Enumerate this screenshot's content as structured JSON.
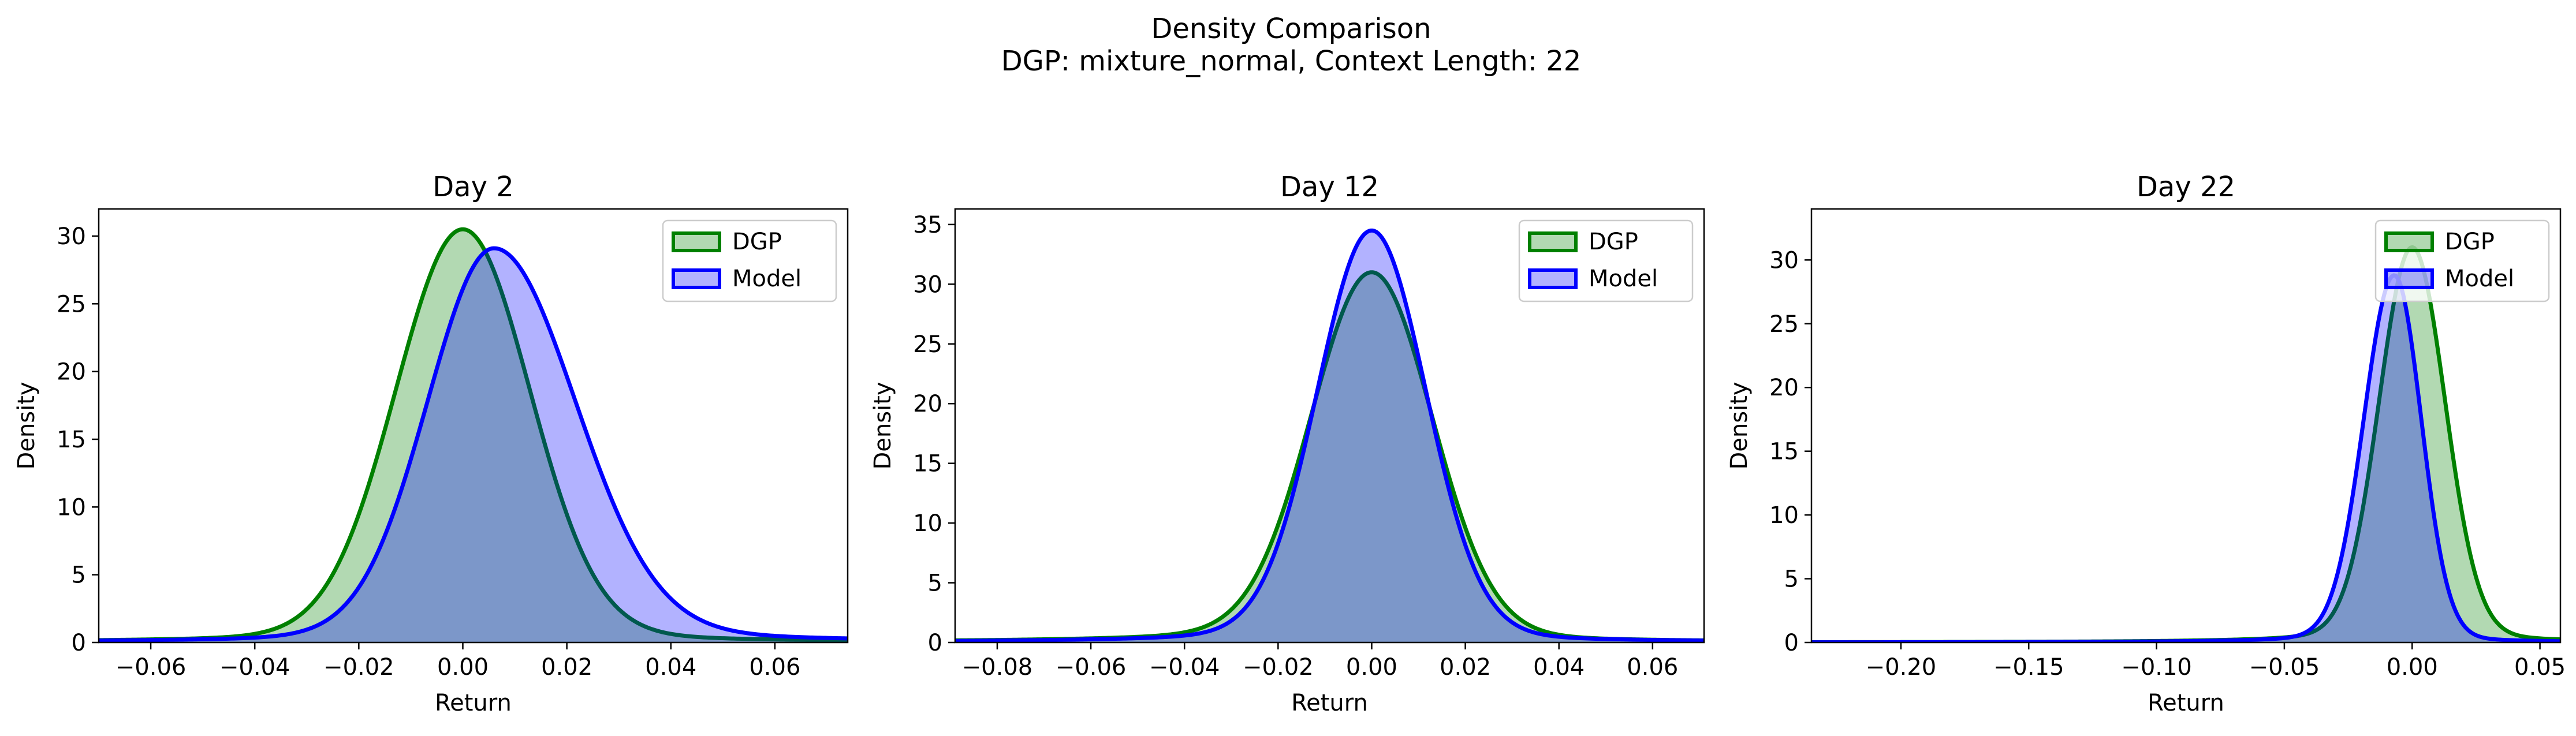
{
  "figure": {
    "title_line1": "Density Comparison",
    "title_line2": "DGP: mixture_normal, Context Length: 22"
  },
  "colors": {
    "dgp_line": "#008000",
    "dgp_fill": "#008000",
    "model_line": "#0000ff",
    "model_fill": "#0000ff"
  },
  "chart_data": [
    {
      "type": "area",
      "title": "Day 2",
      "xlabel": "Return",
      "ylabel": "Density",
      "xlim": [
        -0.07,
        0.074
      ],
      "ylim": [
        0,
        32
      ],
      "xticks": [
        -0.06,
        -0.04,
        -0.02,
        0.0,
        0.02,
        0.04,
        0.06
      ],
      "xtick_labels": [
        "−0.06",
        "−0.04",
        "−0.02",
        "0.00",
        "0.02",
        "0.04",
        "0.06"
      ],
      "yticks": [
        0,
        5,
        10,
        15,
        20,
        25,
        30
      ],
      "legend": {
        "placement": "top-right",
        "entries": [
          "DGP",
          "Model"
        ]
      },
      "series": [
        {
          "name": "DGP",
          "peak_x": 0.0,
          "peak_y": 30.5,
          "sigma_left": 0.0128,
          "sigma_right": 0.0128,
          "tail_left": 0.04,
          "tail_right": 0.04
        },
        {
          "name": "Model",
          "peak_x": 0.006,
          "peak_y": 29.1,
          "sigma_left": 0.0127,
          "sigma_right": 0.0155,
          "tail_left": 0.04,
          "tail_right": 0.05
        }
      ]
    },
    {
      "type": "area",
      "title": "Day 12",
      "xlabel": "Return",
      "ylabel": "Density",
      "xlim": [
        -0.089,
        0.071
      ],
      "ylim": [
        0,
        36.3
      ],
      "xticks": [
        -0.08,
        -0.06,
        -0.04,
        -0.02,
        0.0,
        0.02,
        0.04,
        0.06
      ],
      "xtick_labels": [
        "−0.08",
        "−0.06",
        "−0.04",
        "−0.02",
        "0.00",
        "0.02",
        "0.04",
        "0.06"
      ],
      "yticks": [
        0,
        5,
        10,
        15,
        20,
        25,
        30,
        35
      ],
      "legend": {
        "placement": "top-right",
        "entries": [
          "DGP",
          "Model"
        ]
      },
      "series": [
        {
          "name": "DGP",
          "peak_x": 0.0,
          "peak_y": 31.0,
          "sigma_left": 0.0128,
          "sigma_right": 0.0128,
          "tail_left": 0.06,
          "tail_right": 0.04
        },
        {
          "name": "Model",
          "peak_x": 0.0,
          "peak_y": 34.5,
          "sigma_left": 0.0115,
          "sigma_right": 0.0115,
          "tail_left": 0.05,
          "tail_right": 0.04
        }
      ]
    },
    {
      "type": "area",
      "title": "Day 22",
      "xlabel": "Return",
      "ylabel": "Density",
      "xlim": [
        -0.235,
        0.058
      ],
      "ylim": [
        0,
        34
      ],
      "xticks": [
        -0.2,
        -0.15,
        -0.1,
        -0.05,
        0.0,
        0.05
      ],
      "xtick_labels": [
        "−0.20",
        "−0.15",
        "−0.10",
        "−0.05",
        "0.00",
        "0.05"
      ],
      "yticks": [
        0,
        5,
        10,
        15,
        20,
        25,
        30
      ],
      "legend": {
        "placement": "top-right",
        "entries": [
          "DGP",
          "Model"
        ]
      },
      "series": [
        {
          "name": "DGP",
          "peak_x": 0.0,
          "peak_y": 31.0,
          "sigma_left": 0.0128,
          "sigma_right": 0.0128,
          "tail_left": 0.05,
          "tail_right": 0.04
        },
        {
          "name": "Model",
          "peak_x": -0.007,
          "peak_y": 28.8,
          "sigma_left": 0.0118,
          "sigma_right": 0.0105,
          "tail_left": 0.04,
          "tail_right": 0.03
        }
      ]
    }
  ]
}
